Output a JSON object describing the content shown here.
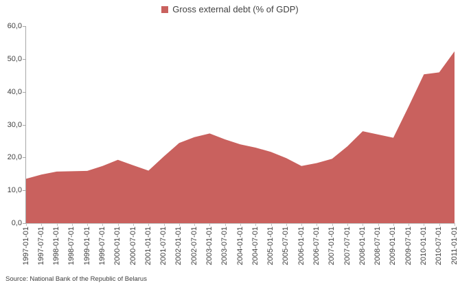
{
  "legend": {
    "label": "Gross external debt (% of GDP)"
  },
  "source_note": "Source: National Bank of the Republic of Belarus",
  "colors": {
    "area_fill": "#c9615e",
    "legend_marker": "#c9615e",
    "y_axis_line": "#a6a6a6",
    "x_axis_line": "#bfbfbf",
    "label_text": "#404040"
  },
  "chart_data": {
    "type": "area",
    "title": "Gross external debt (% of GDP)",
    "legend_position": "top-center",
    "grid": false,
    "ylim": [
      0,
      60
    ],
    "y_tick_step": 10,
    "y_tick_labels": [
      "0,0",
      "10,0",
      "20,0",
      "30,0",
      "40,0",
      "50,0",
      "60,0"
    ],
    "categories": [
      "1997-01-01",
      "1997-07-01",
      "1998-01-01",
      "1998-07-01",
      "1999-01-01",
      "1999-07-01",
      "2000-01-01",
      "2000-07-01",
      "2001-01-01",
      "2001-07-01",
      "2002-01-01",
      "2002-07-01",
      "2003-01-01",
      "2003-07-01",
      "2004-01-01",
      "2004-07-01",
      "2005-01-01",
      "2005-07-01",
      "2006-01-01",
      "2006-07-01",
      "2007-01-01",
      "2007-07-01",
      "2008-01-01",
      "2008-07-01",
      "2009-01-01",
      "2009-07-01",
      "2010-01-01",
      "2010-07-01",
      "2011-01-01"
    ],
    "values": [
      13.5,
      14.8,
      15.7,
      15.8,
      15.9,
      17.4,
      19.3,
      17.6,
      16.0,
      20.3,
      24.4,
      26.2,
      27.3,
      25.5,
      24.0,
      23.0,
      21.7,
      19.8,
      17.4,
      18.3,
      19.6,
      23.4,
      28.0,
      27.0,
      26.0,
      35.5,
      45.3,
      45.9,
      52.3
    ]
  }
}
